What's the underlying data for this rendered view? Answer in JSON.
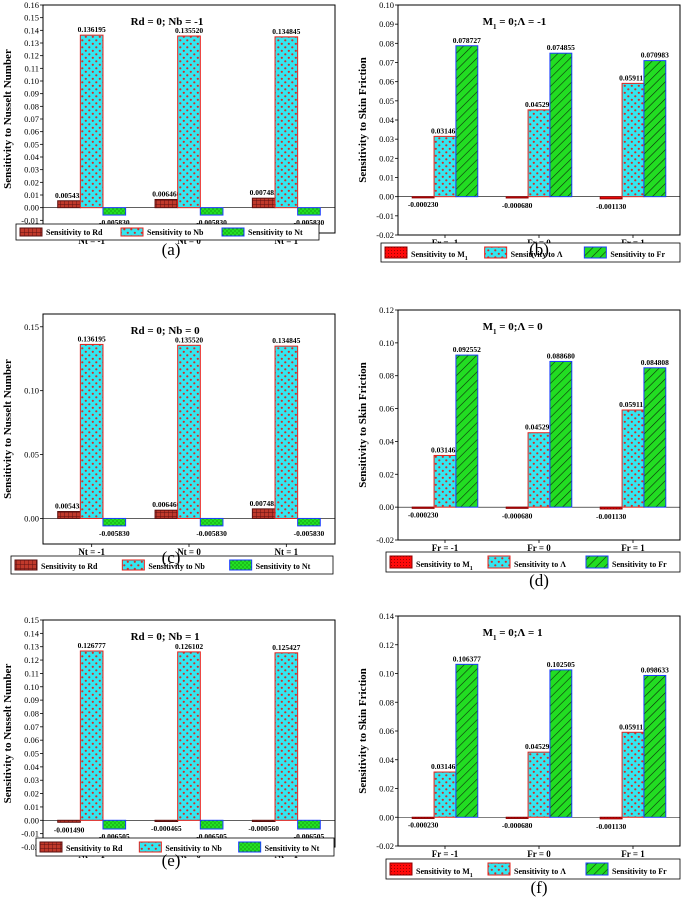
{
  "figure": {
    "colors": {
      "rd": "#c0392b",
      "rd_edge": "#5a1010",
      "nb": "#33e6f0",
      "nb_edge": "#e8201a",
      "nb_dot": "#d0302a",
      "nt": "#22e022",
      "nt_edge": "#1a3cff",
      "m1": "#ff0a0a",
      "m1_edge": "#8b0000",
      "lam": "#33e6f0",
      "lam_edge": "#e8201a",
      "fr": "#22dd22",
      "fr_edge": "#1a3cff"
    },
    "panels": [
      {
        "id": "a",
        "caption": "(a)",
        "annotation": "Rd = 0; Nb = -1",
        "ylabel": "Sensitivity to Nusselt Number",
        "categories": [
          "Nt = -1",
          "Nt = 0",
          "Nt = 1"
        ],
        "ylim": [
          -0.02,
          0.16
        ],
        "yticks": [
          -0.02,
          -0.01,
          0.0,
          0.01,
          0.02,
          0.03,
          0.04,
          0.05,
          0.06,
          0.07,
          0.08,
          0.09,
          0.1,
          0.11,
          0.12,
          0.13,
          0.14,
          0.15,
          0.16
        ],
        "ytick_labels": [
          "-0.02",
          "-0.01",
          "0.00",
          "0.01",
          "0.02",
          "0.03",
          "0.04",
          "0.05",
          "0.06",
          "0.07",
          "0.08",
          "0.09",
          "0.10",
          "0.11",
          "0.12",
          "0.13",
          "0.14",
          "0.15",
          "0.16"
        ],
        "series": [
          {
            "name": "Sensitivity to Rd",
            "style": "rd",
            "values": [
              0.005435,
              0.00646,
              0.007485
            ],
            "labels": [
              "0.005435",
              "0.006460",
              "0.007485"
            ]
          },
          {
            "name": "Sensitivity to Nb",
            "style": "nb",
            "values": [
              0.136195,
              0.13552,
              0.134845
            ],
            "labels": [
              "0.136195",
              "0.135520",
              "0.134845"
            ]
          },
          {
            "name": "Sensitivity to Nt",
            "style": "nt",
            "values": [
              -0.00583,
              -0.00583,
              -0.00583
            ],
            "labels": [
              "-0.005830",
              "-0.005830",
              "-0.005830"
            ]
          }
        ]
      },
      {
        "id": "b",
        "caption": "(b)",
        "annotation": "M",
        "annotation_sub": "1",
        "annotation_rest": " = 0;Λ = -1",
        "ylabel": "Sensitivity to Skin Friction",
        "categories": [
          "Fr = -1",
          "Fr = 0",
          "Fr = 1"
        ],
        "ylim": [
          -0.02,
          0.1
        ],
        "yticks": [
          -0.02,
          -0.01,
          0.0,
          0.01,
          0.02,
          0.03,
          0.04,
          0.05,
          0.06,
          0.07,
          0.08,
          0.09,
          0.1
        ],
        "ytick_labels": [
          "-0.02",
          "-0.01",
          "0.00",
          "0.01",
          "0.02",
          "0.03",
          "0.04",
          "0.05",
          "0.06",
          "0.07",
          "0.08",
          "0.09",
          "0.10"
        ],
        "series": [
          {
            "name": "Sensitivity to M",
            "name_sub": "1",
            "style": "m1",
            "values": [
              -0.00023,
              -0.00068,
              -0.00113
            ],
            "labels": [
              "-0.000230",
              "-0.000680",
              "-0.001130"
            ]
          },
          {
            "name": "Sensitivity to Λ",
            "style": "lam",
            "values": [
              0.031465,
              0.04529,
              0.059115
            ],
            "labels": [
              "0.031465",
              "0.045290",
              "0.059115"
            ]
          },
          {
            "name": "Sensitivity to Fr",
            "style": "fr",
            "values": [
              0.078727,
              0.074855,
              0.070983
            ],
            "labels": [
              "0.078727",
              "0.074855",
              "0.070983"
            ]
          }
        ]
      },
      {
        "id": "c",
        "caption": "(c)",
        "annotation": "Rd = 0; Nb = 0",
        "ylabel": "Sensitivity to Nusselt Number",
        "categories": [
          "Nt = -1",
          "Nt = 0",
          "Nt = 1"
        ],
        "ylim": [
          -0.02,
          0.16
        ],
        "yticks": [
          0.0,
          0.05,
          0.1,
          0.15
        ],
        "ytick_labels": [
          "0.00",
          "0.05",
          "0.10",
          "0.15"
        ],
        "series": [
          {
            "name": "Sensitivity to Rd",
            "style": "rd",
            "values": [
              0.005435,
              0.00646,
              0.007485
            ],
            "labels": [
              "0.005435",
              "0.006460",
              "0.007485"
            ]
          },
          {
            "name": "Sensitivity to Nb",
            "style": "nb",
            "values": [
              0.136195,
              0.13552,
              0.134845
            ],
            "labels": [
              "0.136195",
              "0.135520",
              "0.134845"
            ]
          },
          {
            "name": "Sensitivity to Nt",
            "style": "nt",
            "values": [
              -0.00583,
              -0.00583,
              -0.00583
            ],
            "labels": [
              "-0.005830",
              "-0.005830",
              "-0.005830"
            ]
          }
        ]
      },
      {
        "id": "d",
        "caption": "(d)",
        "annotation": "M",
        "annotation_sub": "1",
        "annotation_rest": " = 0;Λ = 0",
        "ylabel": "Sensitivity to Skin Friction",
        "categories": [
          "Fr = -1",
          "Fr = 0",
          "Fr = 1"
        ],
        "ylim": [
          -0.02,
          0.12
        ],
        "yticks": [
          -0.02,
          0.0,
          0.02,
          0.04,
          0.06,
          0.08,
          0.1,
          0.12
        ],
        "ytick_labels": [
          "-0.02",
          "0.00",
          "0.02",
          "0.04",
          "0.06",
          "0.08",
          "0.10",
          "0.12"
        ],
        "series": [
          {
            "name": "Sensitivity to M",
            "name_sub": "1",
            "style": "m1",
            "values": [
              -0.00023,
              -0.00068,
              -0.00113
            ],
            "labels": [
              "-0.000230",
              "-0.000680",
              "-0.001130"
            ]
          },
          {
            "name": "Sensitivity to Λ",
            "style": "lam",
            "values": [
              0.031465,
              0.04529,
              0.059115
            ],
            "labels": [
              "0.031465",
              "0.045290",
              "0.059115"
            ]
          },
          {
            "name": "Sensitivity to Fr",
            "style": "fr",
            "values": [
              0.092552,
              0.08868,
              0.084808
            ],
            "labels": [
              "0.092552",
              "0.088680",
              "0.084808"
            ]
          }
        ]
      },
      {
        "id": "e",
        "caption": "(e)",
        "annotation": "Rd = 0; Nb = 1",
        "ylabel": "Sensitivity to Nusselt Number",
        "categories": [
          "Nt = -1",
          "Nt = 0",
          "Nt = 1"
        ],
        "ylim": [
          -0.02,
          0.15
        ],
        "yticks": [
          -0.02,
          -0.01,
          0.0,
          0.01,
          0.02,
          0.03,
          0.04,
          0.05,
          0.06,
          0.07,
          0.08,
          0.09,
          0.1,
          0.11,
          0.12,
          0.13,
          0.14,
          0.15
        ],
        "ytick_labels": [
          "-0.02",
          "-0.01",
          "0.00",
          "0.01",
          "0.02",
          "0.03",
          "0.04",
          "0.05",
          "0.06",
          "0.07",
          "0.08",
          "0.09",
          "0.10",
          "0.11",
          "0.12",
          "0.13",
          "0.14",
          "0.15"
        ],
        "series": [
          {
            "name": "Sensitivity to Rd",
            "style": "rd",
            "values": [
              -0.00149,
              -0.000465,
              -0.00056
            ],
            "labels": [
              "-0.001490",
              "-0.000465",
              "-0.000560"
            ]
          },
          {
            "name": "Sensitivity to Nb",
            "style": "nb",
            "values": [
              0.126777,
              0.126102,
              0.125427
            ],
            "labels": [
              "0.126777",
              "0.126102",
              "0.125427"
            ]
          },
          {
            "name": "Sensitivity to Nt",
            "style": "nt",
            "values": [
              -0.006505,
              -0.006505,
              -0.006505
            ],
            "labels": [
              "-0.006505",
              "-0.006505",
              "-0.006505"
            ]
          }
        ]
      },
      {
        "id": "f",
        "caption": "(f)",
        "annotation": "M",
        "annotation_sub": "1",
        "annotation_rest": " = 0;Λ = 1",
        "ylabel": "Sensitivity to Skin Friction",
        "categories": [
          "Fr = -1",
          "Fr = 0",
          "Fr = 1"
        ],
        "ylim": [
          -0.02,
          0.14
        ],
        "yticks": [
          -0.02,
          0.0,
          0.02,
          0.04,
          0.06,
          0.08,
          0.1,
          0.12,
          0.14
        ],
        "ytick_labels": [
          "-0.02",
          "0.00",
          "0.02",
          "0.04",
          "0.06",
          "0.08",
          "0.10",
          "0.12",
          "0.14"
        ],
        "series": [
          {
            "name": "Sensitivity to M",
            "name_sub": "1",
            "style": "m1",
            "values": [
              -0.00023,
              -0.00068,
              -0.00113
            ],
            "labels": [
              "-0.000230",
              "-0.000680",
              "-0.001130"
            ]
          },
          {
            "name": "Sensitivity to Λ",
            "style": "lam",
            "values": [
              0.031465,
              0.04529,
              0.059115
            ],
            "labels": [
              "0.031465",
              "0.045290",
              "0.059115"
            ]
          },
          {
            "name": "Sensitivity to Fr",
            "style": "fr",
            "values": [
              0.106377,
              0.102505,
              0.098633
            ],
            "labels": [
              "0.106377",
              "0.102505",
              "0.098633"
            ]
          }
        ]
      }
    ]
  },
  "chart_data": [
    {
      "type": "bar",
      "title": "Rd = 0; Nb = -1",
      "ylabel": "Sensitivity to Nusselt Number",
      "categories": [
        "Nt = -1",
        "Nt = 0",
        "Nt = 1"
      ],
      "ylim": [
        -0.02,
        0.16
      ],
      "series": [
        {
          "name": "Sensitivity to Rd",
          "values": [
            0.005435,
            0.00646,
            0.007485
          ]
        },
        {
          "name": "Sensitivity to Nb",
          "values": [
            0.136195,
            0.13552,
            0.134845
          ]
        },
        {
          "name": "Sensitivity to Nt",
          "values": [
            -0.00583,
            -0.00583,
            -0.00583
          ]
        }
      ]
    },
    {
      "type": "bar",
      "title": "M1 = 0;Λ = -1",
      "ylabel": "Sensitivity to Skin Friction",
      "categories": [
        "Fr = -1",
        "Fr = 0",
        "Fr = 1"
      ],
      "ylim": [
        -0.02,
        0.1
      ],
      "series": [
        {
          "name": "Sensitivity to M1",
          "values": [
            -0.00023,
            -0.00068,
            -0.00113
          ]
        },
        {
          "name": "Sensitivity to Λ",
          "values": [
            0.031465,
            0.04529,
            0.059115
          ]
        },
        {
          "name": "Sensitivity to Fr",
          "values": [
            0.078727,
            0.074855,
            0.070983
          ]
        }
      ]
    },
    {
      "type": "bar",
      "title": "Rd = 0; Nb = 0",
      "ylabel": "Sensitivity to Nusselt Number",
      "categories": [
        "Nt = -1",
        "Nt = 0",
        "Nt = 1"
      ],
      "ylim": [
        -0.02,
        0.16
      ],
      "series": [
        {
          "name": "Sensitivity to Rd",
          "values": [
            0.005435,
            0.00646,
            0.007485
          ]
        },
        {
          "name": "Sensitivity to Nb",
          "values": [
            0.136195,
            0.13552,
            0.134845
          ]
        },
        {
          "name": "Sensitivity to Nt",
          "values": [
            -0.00583,
            -0.00583,
            -0.00583
          ]
        }
      ]
    },
    {
      "type": "bar",
      "title": "M1 = 0;Λ = 0",
      "ylabel": "Sensitivity to Skin Friction",
      "categories": [
        "Fr = -1",
        "Fr = 0",
        "Fr = 1"
      ],
      "ylim": [
        -0.02,
        0.12
      ],
      "series": [
        {
          "name": "Sensitivity to M1",
          "values": [
            -0.00023,
            -0.00068,
            -0.00113
          ]
        },
        {
          "name": "Sensitivity to Λ",
          "values": [
            0.031465,
            0.04529,
            0.059115
          ]
        },
        {
          "name": "Sensitivity to Fr",
          "values": [
            0.092552,
            0.08868,
            0.084808
          ]
        }
      ]
    },
    {
      "type": "bar",
      "title": "Rd = 0; Nb = 1",
      "ylabel": "Sensitivity to Nusselt Number",
      "categories": [
        "Nt = -1",
        "Nt = 0",
        "Nt = 1"
      ],
      "ylim": [
        -0.02,
        0.15
      ],
      "series": [
        {
          "name": "Sensitivity to Rd",
          "values": [
            -0.00149,
            -0.000465,
            -0.00056
          ]
        },
        {
          "name": "Sensitivity to Nb",
          "values": [
            0.126777,
            0.126102,
            0.125427
          ]
        },
        {
          "name": "Sensitivity to Nt",
          "values": [
            -0.006505,
            -0.006505,
            -0.006505
          ]
        }
      ]
    },
    {
      "type": "bar",
      "title": "M1 = 0;Λ = 1",
      "ylabel": "Sensitivity to Skin Friction",
      "categories": [
        "Fr = -1",
        "Fr = 0",
        "Fr = 1"
      ],
      "ylim": [
        -0.02,
        0.14
      ],
      "series": [
        {
          "name": "Sensitivity to M1",
          "values": [
            -0.00023,
            -0.00068,
            -0.00113
          ]
        },
        {
          "name": "Sensitivity to Λ",
          "values": [
            0.031465,
            0.04529,
            0.059115
          ]
        },
        {
          "name": "Sensitivity to Fr",
          "values": [
            0.106377,
            0.102505,
            0.098633
          ]
        }
      ]
    }
  ]
}
